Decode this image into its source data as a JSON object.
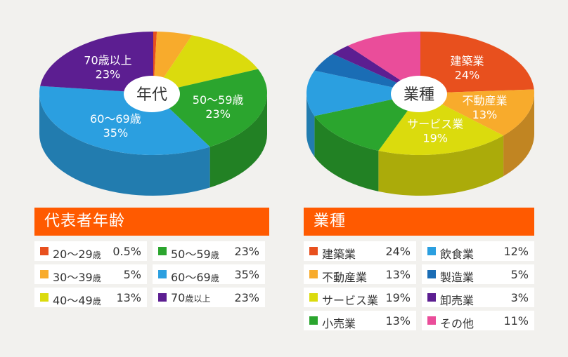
{
  "chart_data": [
    {
      "type": "pie",
      "center_label": "年代",
      "title": "代表者年齢",
      "slices": [
        {
          "label": "20〜29",
          "suffix": "歳",
          "value": 0.5,
          "value_text": "0.5%",
          "color": "#e8501e"
        },
        {
          "label": "30〜39",
          "suffix": "歳",
          "value": 5,
          "value_text": "5%",
          "color": "#f8ab2c"
        },
        {
          "label": "40〜49",
          "suffix": "歳",
          "value": 13,
          "value_text": "13%",
          "color": "#dbdb0d"
        },
        {
          "label": "50〜59",
          "suffix": "歳",
          "value": 23,
          "value_text": "23%",
          "color": "#2ba52e",
          "chart_label": "50〜59歳",
          "chart_pct": "23%"
        },
        {
          "label": "60〜69",
          "suffix": "歳",
          "value": 35,
          "value_text": "35%",
          "color": "#2b9fe0",
          "chart_label": "60〜69歳",
          "chart_pct": "35%"
        },
        {
          "label": "70",
          "suffix": "歳以上",
          "value": 23,
          "value_text": "23%",
          "color": "#5c1e91",
          "chart_label": "70歳以上",
          "chart_pct": "23%"
        }
      ]
    },
    {
      "type": "pie",
      "center_label": "業種",
      "title": "業種",
      "slices": [
        {
          "label": "建築業",
          "suffix": "",
          "value": 24,
          "value_text": "24%",
          "color": "#e8501e",
          "chart_label": "建築業",
          "chart_pct": "24%"
        },
        {
          "label": "不動産業",
          "suffix": "",
          "value": 13,
          "value_text": "13%",
          "color": "#f8ab2c",
          "chart_label": "不動産業",
          "chart_pct": "13%"
        },
        {
          "label": "サービス業",
          "suffix": "",
          "value": 19,
          "value_text": "19%",
          "color": "#dbdb0d",
          "chart_label": "サービス業",
          "chart_pct": "19%"
        },
        {
          "label": "小売業",
          "suffix": "",
          "value": 13,
          "value_text": "13%",
          "color": "#2ba52e"
        },
        {
          "label": "飲食業",
          "suffix": "",
          "value": 12,
          "value_text": "12%",
          "color": "#2b9fe0"
        },
        {
          "label": "製造業",
          "suffix": "",
          "value": 5,
          "value_text": "5%",
          "color": "#1a6db5"
        },
        {
          "label": "卸売業",
          "suffix": "",
          "value": 3,
          "value_text": "3%",
          "color": "#5c1e91"
        },
        {
          "label": "その他",
          "suffix": "",
          "value": 11,
          "value_text": "11%",
          "color": "#ea4d9a"
        }
      ]
    }
  ]
}
